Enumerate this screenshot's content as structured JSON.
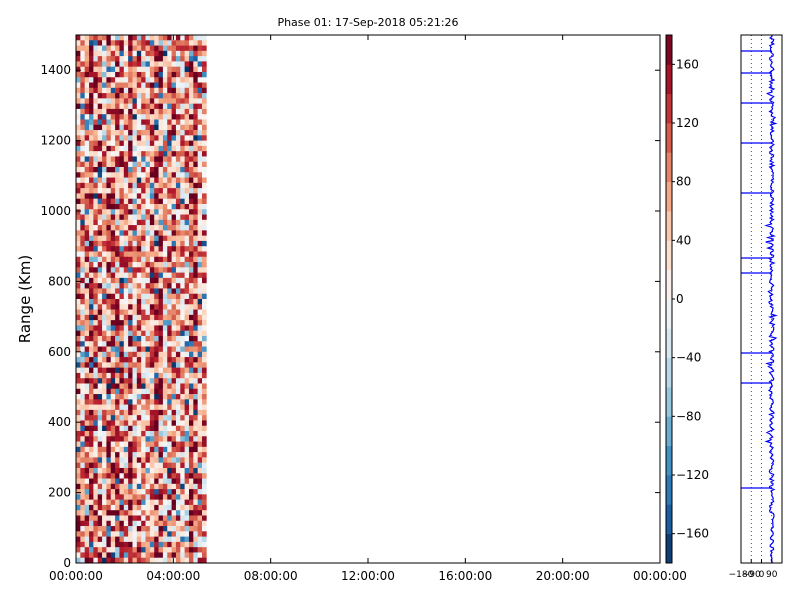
{
  "chart_data": [
    {
      "type": "heatmap",
      "title": "Phase 01: 17-Sep-2018 05:21:26",
      "xlabel": "",
      "ylabel": "Range (Km)",
      "x_range": [
        "00:00:00",
        "24:00:00"
      ],
      "x_ticks": [
        "00:00:00",
        "04:00:00",
        "08:00:00",
        "12:00:00",
        "16:00:00",
        "20:00:00",
        "00:00:00"
      ],
      "data_time_extent": [
        "00:00:00",
        "05:21:26"
      ],
      "ylim": [
        0,
        1500
      ],
      "y_ticks": [
        0,
        200,
        400,
        600,
        800,
        1000,
        1200,
        1400
      ],
      "colormap": "RdBu_r",
      "colors": {
        "low": "#053061",
        "mid": "#f7f7f7",
        "high": "#67001f"
      },
      "colorbar": {
        "vmin": -180,
        "vmax": 180,
        "ticks": [
          -160,
          -120,
          -80,
          -40,
          0,
          40,
          80,
          120,
          160
        ]
      },
      "grid": false
    },
    {
      "type": "line",
      "title": "",
      "xlabel": "",
      "ylabel": "",
      "xlim": [
        -180,
        180
      ],
      "x_ticks": [
        "−180",
        "−90",
        "0",
        "90"
      ],
      "ylim": [
        0,
        1500
      ],
      "grid": "dotted vertical",
      "color": "#0000ff"
    }
  ]
}
